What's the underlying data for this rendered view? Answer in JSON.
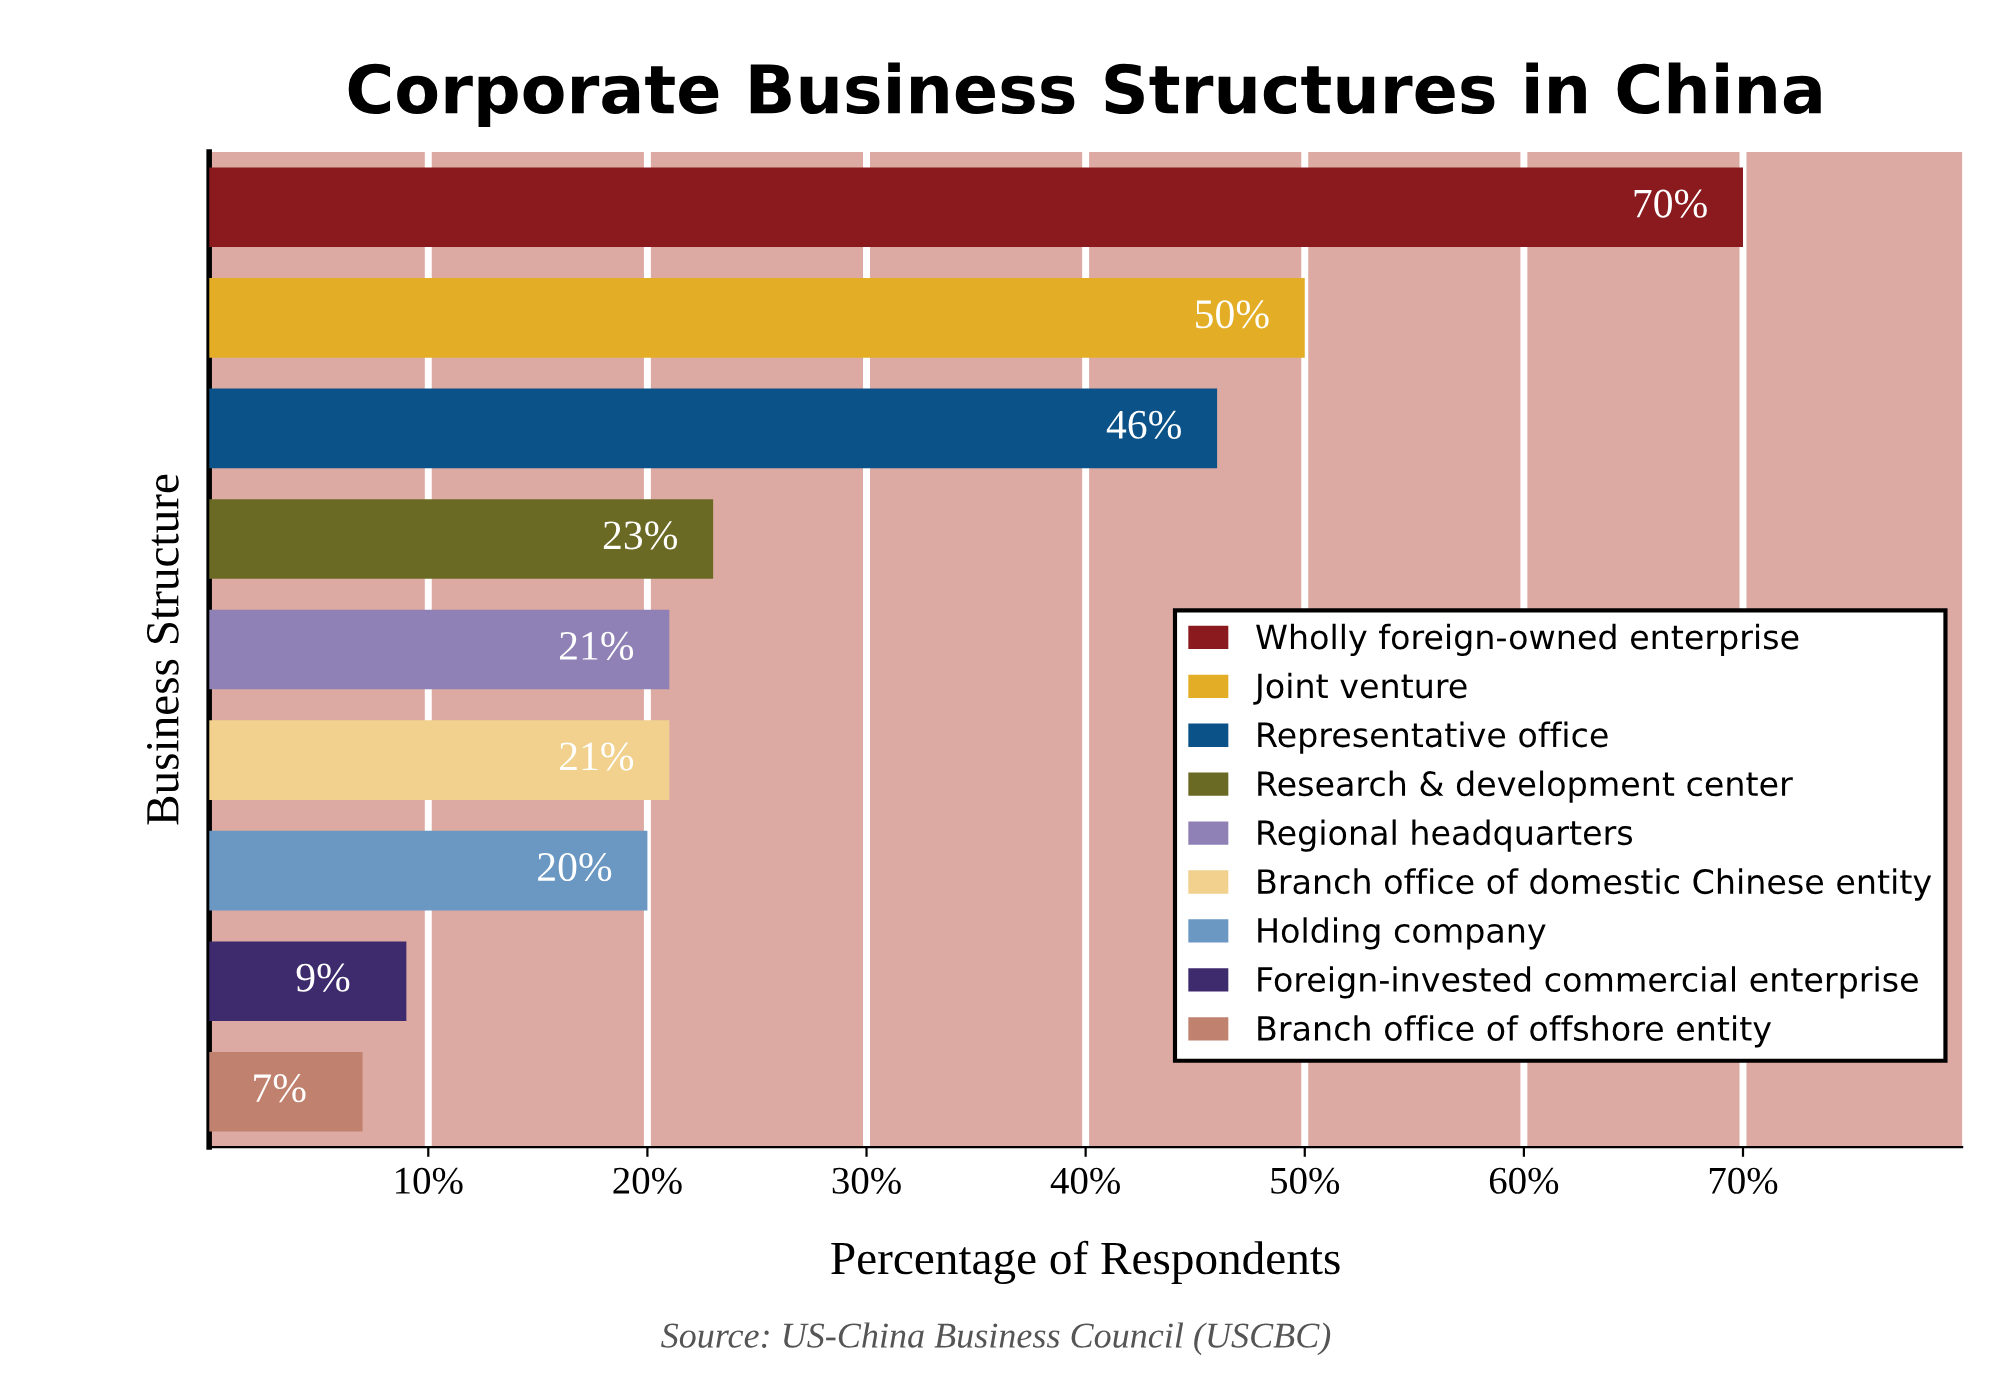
{
  "chart_data": {
    "type": "bar",
    "orientation": "horizontal",
    "title": "Corporate Business Structures in China",
    "xlabel": "Percentage of Respondents",
    "ylabel": "Business Structure",
    "annotations": [
      "Source: US-China Business Council (USCBC)"
    ],
    "categories": [
      null,
      null,
      null,
      null,
      null,
      null,
      null,
      null,
      null
    ],
    "series": [
      {
        "name": "Wholly foreign-owned enterprise",
        "color": "#8b1a1f",
        "values": [
          70,
          null,
          null,
          null,
          null,
          null,
          null,
          null,
          null
        ],
        "value_labels": [
          "70%",
          null,
          null,
          null,
          null,
          null,
          null,
          null,
          null
        ]
      },
      {
        "name": "Joint venture",
        "color": "#e3ae25",
        "values": [
          null,
          50,
          null,
          null,
          null,
          null,
          null,
          null,
          null
        ],
        "value_labels": [
          null,
          "50%",
          null,
          null,
          null,
          null,
          null,
          null,
          null
        ]
      },
      {
        "name": "Representative office",
        "color": "#0a5287",
        "values": [
          null,
          null,
          46,
          null,
          null,
          null,
          null,
          null,
          null
        ],
        "value_labels": [
          null,
          null,
          "46%",
          null,
          null,
          null,
          null,
          null,
          null
        ]
      },
      {
        "name": "Research & development center",
        "color": "#6b6a24",
        "values": [
          null,
          null,
          null,
          23,
          null,
          null,
          null,
          null,
          null
        ],
        "value_labels": [
          null,
          null,
          null,
          "23%",
          null,
          null,
          null,
          null,
          null
        ]
      },
      {
        "name": "Regional headquarters",
        "color": "#8f80b5",
        "values": [
          null,
          null,
          null,
          null,
          21,
          null,
          null,
          null,
          null
        ],
        "value_labels": [
          null,
          null,
          null,
          null,
          "21%",
          null,
          null,
          null,
          null
        ]
      },
      {
        "name": "Branch office of domestic Chinese entity",
        "color": "#f1d18d",
        "values": [
          null,
          null,
          null,
          null,
          null,
          21,
          null,
          null,
          null
        ],
        "value_labels": [
          null,
          null,
          null,
          null,
          null,
          "21%",
          null,
          null,
          null
        ]
      },
      {
        "name": "Holding company",
        "color": "#6a98c3",
        "values": [
          null,
          null,
          null,
          null,
          null,
          null,
          20,
          null,
          null
        ],
        "value_labels": [
          null,
          null,
          null,
          null,
          null,
          null,
          "20%",
          null,
          null
        ]
      },
      {
        "name": "Foreign-invested commercial enterprise",
        "color": "#3e2b6e",
        "values": [
          null,
          null,
          null,
          null,
          null,
          null,
          null,
          9,
          null
        ],
        "value_labels": [
          null,
          null,
          null,
          null,
          null,
          null,
          null,
          "9%",
          null
        ]
      },
      {
        "name": "Branch office of offshore entity",
        "color": "#c0826f",
        "values": [
          null,
          null,
          null,
          null,
          null,
          null,
          null,
          null,
          7
        ],
        "value_labels": [
          null,
          null,
          null,
          null,
          null,
          null,
          null,
          null,
          "7%"
        ]
      }
    ],
    "xlim": [
      0,
      80
    ],
    "xticks": [
      {
        "value": 10,
        "label": "10%"
      },
      {
        "value": 20,
        "label": "20%"
      },
      {
        "value": 30,
        "label": "30%"
      },
      {
        "value": 40,
        "label": "40%"
      },
      {
        "value": 50,
        "label": "50%"
      },
      {
        "value": 60,
        "label": "60%"
      },
      {
        "value": 70,
        "label": "70%"
      }
    ],
    "grid": "x",
    "legend": "right"
  }
}
